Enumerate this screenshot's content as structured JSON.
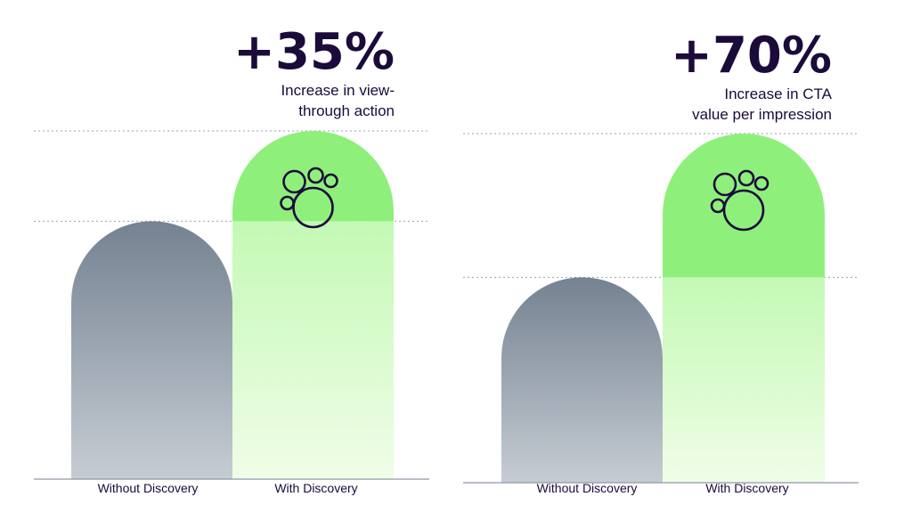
{
  "chart_data": [
    {
      "type": "bar",
      "title": "+35%",
      "subtitle_lines": [
        "Increase in view-",
        "through action"
      ],
      "categories": [
        "Without Discovery",
        "With Discovery"
      ],
      "values": [
        100,
        135
      ],
      "ylim": [
        0,
        135
      ],
      "grid": "dotted reference lines at bar tops",
      "legend": "none",
      "icon": "discovery-bubbles-icon",
      "colors": {
        "without": "#748291",
        "without_fade": "#c6ccd3",
        "with": "#8ef07b",
        "with_fade": "#eefde6",
        "text": "#1a0b3b"
      }
    },
    {
      "type": "bar",
      "title": "+70%",
      "subtitle_lines": [
        "Increase in CTA",
        "value per impression"
      ],
      "categories": [
        "Without Discovery",
        "With Discovery"
      ],
      "values": [
        100,
        170
      ],
      "ylim": [
        0,
        170
      ],
      "grid": "dotted reference lines at bar tops",
      "legend": "none",
      "icon": "discovery-bubbles-icon",
      "colors": {
        "without": "#748291",
        "without_fade": "#c6ccd3",
        "with": "#8ef07b",
        "with_fade": "#eefde6",
        "text": "#1a0b3b"
      }
    }
  ]
}
